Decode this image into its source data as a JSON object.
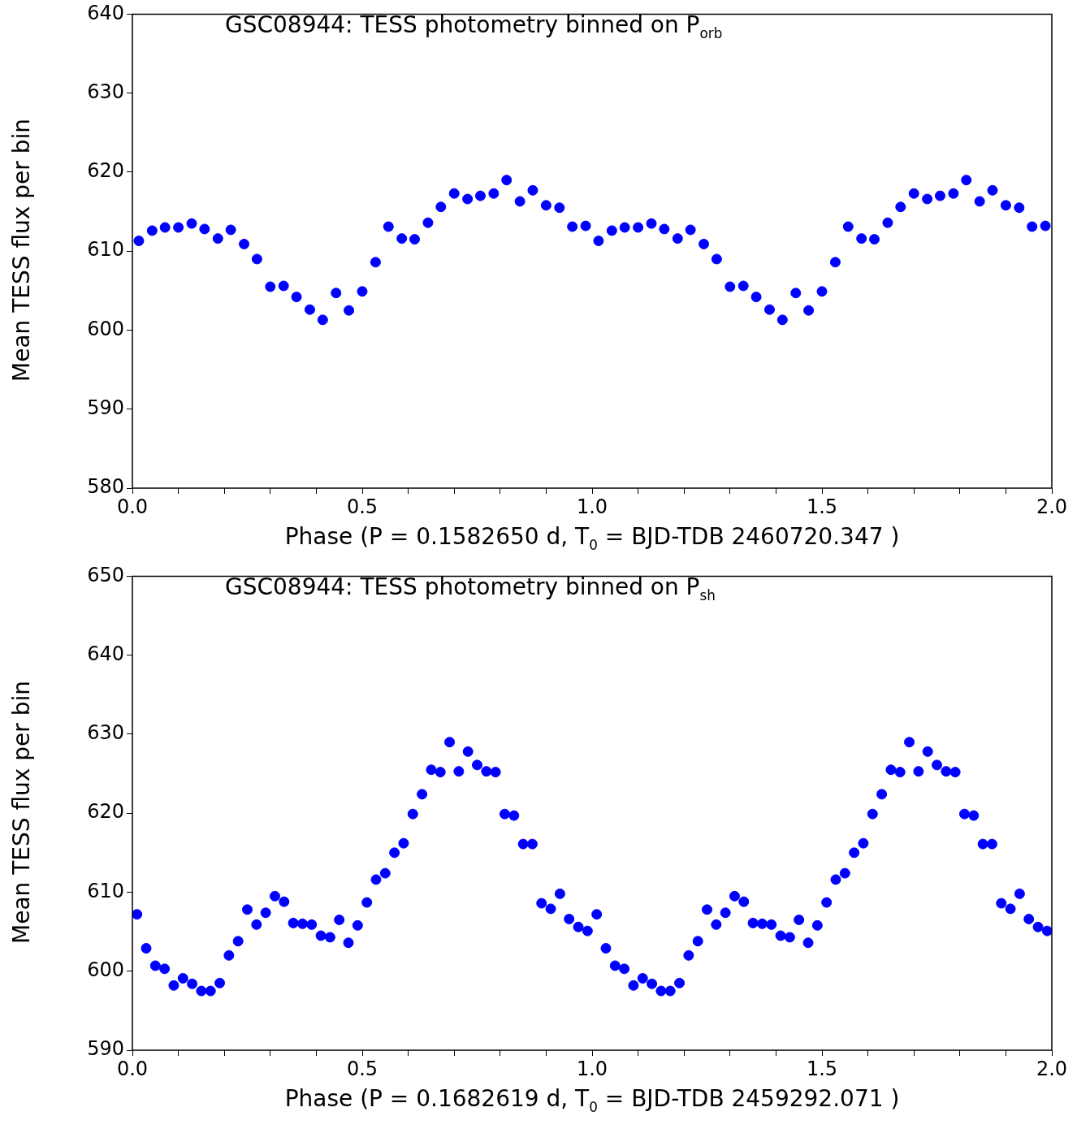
{
  "chart_data": [
    {
      "type": "scatter",
      "title": "GSC08944: TESS photometry binned on P$_{orb}$",
      "xlabel": "Phase (P =  0.1582650 d,  T$_{0}$ = BJD-TDB 2460720.347 )",
      "ylabel": "Mean TESS flux per bin",
      "color": "#0000ff",
      "marker": "circle",
      "x": [
        0.014,
        0.043,
        0.071,
        0.1,
        0.129,
        0.157,
        0.186,
        0.214,
        0.243,
        0.271,
        0.3,
        0.329,
        0.357,
        0.386,
        0.414,
        0.443,
        0.471,
        0.5,
        0.529,
        0.557,
        0.586,
        0.614,
        0.643,
        0.671,
        0.7,
        0.729,
        0.757,
        0.786,
        0.814,
        0.843,
        0.871,
        0.9,
        0.929,
        0.957,
        0.986,
        1.014,
        1.043,
        1.071,
        1.1,
        1.129,
        1.157,
        1.186,
        1.214,
        1.243,
        1.271,
        1.3,
        1.329,
        1.357,
        1.386,
        1.414,
        1.443,
        1.471,
        1.5,
        1.529,
        1.557,
        1.586,
        1.614,
        1.643,
        1.671,
        1.7,
        1.729,
        1.757,
        1.786,
        1.814,
        1.843,
        1.871,
        1.9,
        1.929,
        1.957,
        1.986
      ],
      "values": [
        611.3,
        612.6,
        613.0,
        613.0,
        613.5,
        612.8,
        611.6,
        612.7,
        610.9,
        609.0,
        605.5,
        605.6,
        604.2,
        602.6,
        601.3,
        604.7,
        602.5,
        604.9,
        608.6,
        613.1,
        611.6,
        611.5,
        613.6,
        615.6,
        617.3,
        616.6,
        617.0,
        617.3,
        619.0,
        616.3,
        617.7,
        615.8,
        615.5,
        613.1,
        613.2,
        611.3,
        612.6,
        613.0,
        613.0,
        613.5,
        612.8,
        611.6,
        612.7,
        610.9,
        609.0,
        605.5,
        605.6,
        604.2,
        602.6,
        601.3,
        604.7,
        602.5,
        604.9,
        608.6,
        613.1,
        611.6,
        611.5,
        613.6,
        615.6,
        617.3,
        616.6,
        617.0,
        617.3,
        619.0,
        616.3,
        617.7,
        615.8,
        615.5,
        613.1,
        613.2
      ],
      "xlim": [
        0,
        2
      ],
      "ylim": [
        580,
        640
      ],
      "xticks": [
        {
          "value": 0,
          "label": "0.0"
        },
        {
          "value": 0.1,
          "label": null
        },
        {
          "value": 0.2,
          "label": null
        },
        {
          "value": 0.3,
          "label": null
        },
        {
          "value": 0.4,
          "label": null
        },
        {
          "value": 0.5,
          "label": "0.5"
        },
        {
          "value": 0.6,
          "label": null
        },
        {
          "value": 0.7,
          "label": null
        },
        {
          "value": 0.8,
          "label": null
        },
        {
          "value": 0.9,
          "label": null
        },
        {
          "value": 1,
          "label": "1.0"
        },
        {
          "value": 1.1,
          "label": null
        },
        {
          "value": 1.2,
          "label": null
        },
        {
          "value": 1.3,
          "label": null
        },
        {
          "value": 1.4,
          "label": null
        },
        {
          "value": 1.5,
          "label": "1.5"
        },
        {
          "value": 1.6,
          "label": null
        },
        {
          "value": 1.7,
          "label": null
        },
        {
          "value": 1.8,
          "label": null
        },
        {
          "value": 1.9,
          "label": null
        },
        {
          "value": 2,
          "label": "2.0"
        }
      ],
      "yticks": [
        580,
        590,
        600,
        610,
        620,
        630,
        640
      ]
    },
    {
      "type": "scatter",
      "title": "GSC08944: TESS photometry binned on P$_{sh}$",
      "xlabel": "Phase (P =  0.1682619 d,  T$_{0}$ = BJD-TDB 2459292.071 )",
      "ylabel": "Mean TESS flux per bin",
      "color": "#0000ff",
      "marker": "circle",
      "x": [
        0.01,
        0.03,
        0.05,
        0.07,
        0.09,
        0.11,
        0.13,
        0.15,
        0.17,
        0.19,
        0.21,
        0.23,
        0.25,
        0.27,
        0.29,
        0.31,
        0.33,
        0.35,
        0.37,
        0.39,
        0.41,
        0.43,
        0.45,
        0.47,
        0.49,
        0.51,
        0.53,
        0.55,
        0.57,
        0.59,
        0.61,
        0.63,
        0.65,
        0.67,
        0.69,
        0.71,
        0.73,
        0.75,
        0.77,
        0.79,
        0.81,
        0.83,
        0.85,
        0.87,
        0.89,
        0.91,
        0.93,
        0.95,
        0.97,
        0.99,
        1.01,
        1.03,
        1.05,
        1.07,
        1.09,
        1.11,
        1.13,
        1.15,
        1.17,
        1.19,
        1.21,
        1.23,
        1.25,
        1.27,
        1.29,
        1.31,
        1.33,
        1.35,
        1.37,
        1.39,
        1.41,
        1.43,
        1.45,
        1.47,
        1.49,
        1.51,
        1.53,
        1.55,
        1.57,
        1.59,
        1.61,
        1.63,
        1.65,
        1.67,
        1.69,
        1.71,
        1.73,
        1.75,
        1.77,
        1.79,
        1.81,
        1.83,
        1.85,
        1.87,
        1.89,
        1.91,
        1.93,
        1.95,
        1.97,
        1.99
      ],
      "values": [
        607.2,
        602.9,
        600.7,
        600.3,
        598.2,
        599.1,
        598.4,
        597.5,
        597.5,
        598.5,
        602.0,
        603.8,
        607.8,
        605.9,
        607.4,
        609.5,
        608.8,
        606.1,
        606.0,
        605.9,
        604.5,
        604.3,
        606.5,
        603.6,
        605.8,
        608.7,
        611.6,
        612.4,
        615.0,
        616.2,
        619.9,
        622.4,
        625.5,
        625.2,
        629.0,
        625.3,
        627.8,
        626.1,
        625.3,
        625.2,
        619.9,
        619.7,
        616.1,
        616.1,
        608.6,
        607.9,
        609.8,
        606.6,
        605.6,
        605.1,
        607.2,
        602.9,
        600.7,
        600.3,
        598.2,
        599.1,
        598.4,
        597.5,
        597.5,
        598.5,
        602.0,
        603.8,
        607.8,
        605.9,
        607.4,
        609.5,
        608.8,
        606.1,
        606.0,
        605.9,
        604.5,
        604.3,
        606.5,
        603.6,
        605.8,
        608.7,
        611.6,
        612.4,
        615.0,
        616.2,
        619.9,
        622.4,
        625.5,
        625.2,
        629.0,
        625.3,
        627.8,
        626.1,
        625.3,
        625.2,
        619.9,
        619.7,
        616.1,
        616.1,
        608.6,
        607.9,
        609.8,
        606.6,
        605.6,
        605.1
      ],
      "xlim": [
        0,
        2
      ],
      "ylim": [
        590,
        650
      ],
      "xticks": [
        {
          "value": 0,
          "label": "0.0"
        },
        {
          "value": 0.1,
          "label": null
        },
        {
          "value": 0.2,
          "label": null
        },
        {
          "value": 0.3,
          "label": null
        },
        {
          "value": 0.4,
          "label": null
        },
        {
          "value": 0.5,
          "label": "0.5"
        },
        {
          "value": 0.6,
          "label": null
        },
        {
          "value": 0.7,
          "label": null
        },
        {
          "value": 0.8,
          "label": null
        },
        {
          "value": 0.9,
          "label": null
        },
        {
          "value": 1,
          "label": "1.0"
        },
        {
          "value": 1.1,
          "label": null
        },
        {
          "value": 1.2,
          "label": null
        },
        {
          "value": 1.3,
          "label": null
        },
        {
          "value": 1.4,
          "label": null
        },
        {
          "value": 1.5,
          "label": "1.5"
        },
        {
          "value": 1.6,
          "label": null
        },
        {
          "value": 1.7,
          "label": null
        },
        {
          "value": 1.8,
          "label": null
        },
        {
          "value": 1.9,
          "label": null
        },
        {
          "value": 2,
          "label": "2.0"
        }
      ],
      "yticks": [
        590,
        600,
        610,
        620,
        630,
        640,
        650
      ]
    }
  ]
}
